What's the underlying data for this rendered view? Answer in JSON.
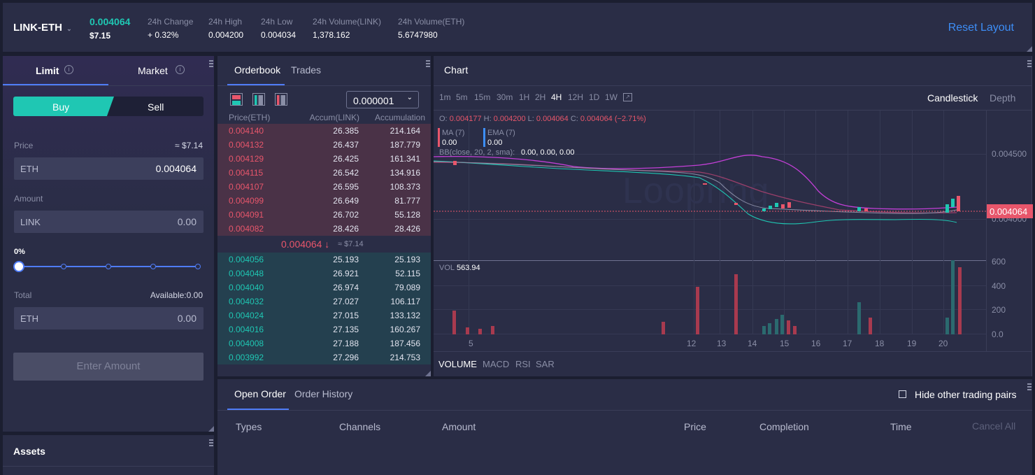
{
  "header": {
    "pair": "LINK-ETH",
    "last_price": "0.004064",
    "usd_price": "$7.15",
    "stats": [
      {
        "label": "24h Change",
        "value": "+ 0.32%"
      },
      {
        "label": "24h High",
        "value": "0.004200"
      },
      {
        "label": "24h Low",
        "value": "0.004034"
      },
      {
        "label": "24h Volume(LINK)",
        "value": "1,378.162"
      },
      {
        "label": "24h Volume(ETH)",
        "value": "5.6747980"
      }
    ],
    "reset_layout": "Reset Layout"
  },
  "trade": {
    "tabs": [
      "Limit",
      "Market"
    ],
    "buy_label": "Buy",
    "sell_label": "Sell",
    "price_label": "Price",
    "price_approx": "≈ $7.14",
    "price_unit": "ETH",
    "price_value": "0.004064",
    "amount_label": "Amount",
    "amount_unit": "LINK",
    "amount_value": "0.00",
    "slider_pct": "0%",
    "slider_value": 0,
    "total_label": "Total",
    "available": "Available:0.00",
    "total_unit": "ETH",
    "total_value": "0.00",
    "submit_label": "Enter Amount"
  },
  "assets": {
    "title": "Assets"
  },
  "orderbook": {
    "tabs": [
      "Orderbook",
      "Trades"
    ],
    "precision": "0.000001",
    "columns": [
      "Price(ETH)",
      "Accum(LINK)",
      "Accumulation"
    ],
    "asks": [
      [
        "0.004140",
        "26.385",
        "214.164"
      ],
      [
        "0.004132",
        "26.437",
        "187.779"
      ],
      [
        "0.004129",
        "26.425",
        "161.341"
      ],
      [
        "0.004115",
        "26.542",
        "134.916"
      ],
      [
        "0.004107",
        "26.595",
        "108.373"
      ],
      [
        "0.004099",
        "26.649",
        "81.777"
      ],
      [
        "0.004091",
        "26.702",
        "55.128"
      ],
      [
        "0.004082",
        "28.426",
        "28.426"
      ]
    ],
    "mid_price": "0.004064 ↓",
    "mid_usd": "≈ $7.14",
    "bids": [
      [
        "0.004056",
        "25.193",
        "25.193"
      ],
      [
        "0.004048",
        "26.921",
        "52.115"
      ],
      [
        "0.004040",
        "26.974",
        "79.089"
      ],
      [
        "0.004032",
        "27.027",
        "106.117"
      ],
      [
        "0.004024",
        "27.015",
        "133.132"
      ],
      [
        "0.004016",
        "27.135",
        "160.267"
      ],
      [
        "0.004008",
        "27.188",
        "187.456"
      ],
      [
        "0.003992",
        "27.296",
        "214.753"
      ]
    ]
  },
  "chart": {
    "title": "Chart",
    "timeframes": [
      "1m",
      "5m",
      "15m",
      "30m",
      "1H",
      "2H",
      "4H",
      "12H",
      "1D",
      "1W"
    ],
    "active_timeframe": "4H",
    "views": [
      "Candlestick",
      "Depth"
    ],
    "ohlc_o_label": "O:",
    "ohlc_o": "0.004177",
    "ohlc_h_label": "H:",
    "ohlc_h": "0.004200",
    "ohlc_l_label": "L:",
    "ohlc_l": "0.004064",
    "ohlc_c_label": "C:",
    "ohlc_c": "0.004064 (−2.71%)",
    "ma_label": "MA (7)",
    "ma_value": "0.00",
    "ema_label": "EMA (7)",
    "ema_value": "0.00",
    "bb_label": "BB(close, 20, 2, sma):",
    "bb_value": "0.00, 0.00, 0.00",
    "watermark": "Loopring",
    "price_axis": [
      "0.004500",
      "0.004000"
    ],
    "price_tag": "0.004064",
    "vol_label": "VOL",
    "vol_value": "563.94",
    "vol_axis": [
      "600",
      "400",
      "200",
      "0.0"
    ],
    "x_axis": [
      "5",
      "12",
      "13",
      "14",
      "15",
      "16",
      "17",
      "18",
      "19",
      "20"
    ],
    "indicators": [
      "VOLUME",
      "MACD",
      "RSI",
      "SAR"
    ]
  },
  "orders": {
    "tabs": [
      "Open Order",
      "Order History"
    ],
    "hide_pairs": "Hide other trading pairs",
    "columns": [
      "Types",
      "Channels",
      "Amount",
      "Price",
      "Completion",
      "Time"
    ],
    "cancel_all": "Cancel All"
  },
  "colors": {
    "accent": "#1fc7b3",
    "down": "#e8566b",
    "link": "#3d8ef7",
    "bg": "#2a2d46"
  }
}
